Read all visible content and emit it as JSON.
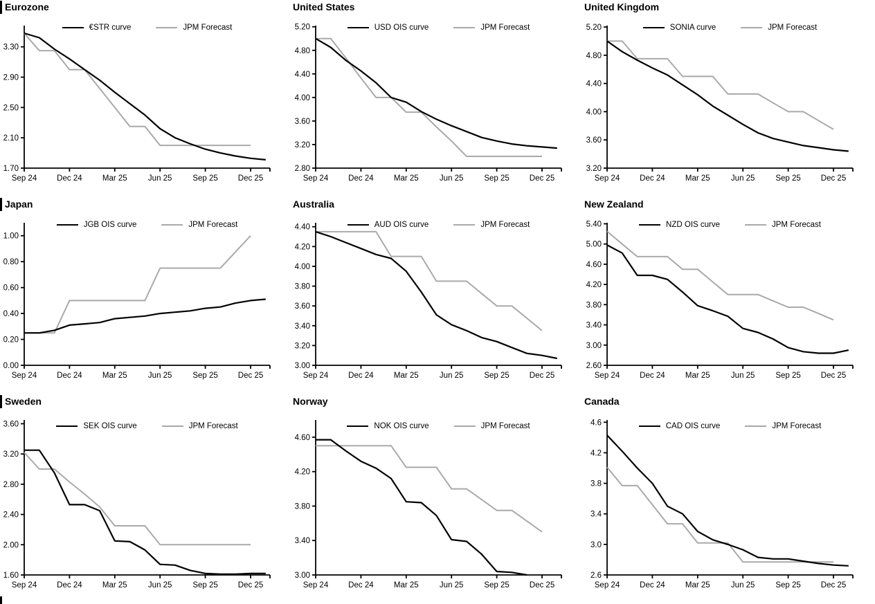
{
  "page": {
    "background": "#ffffff",
    "axis_color": "#000000",
    "curve_color": "#000000",
    "forecast_color": "#a9a9a9",
    "grid": "3x3",
    "partial_section_bar_bottom_left": true
  },
  "x_axis": {
    "tick_labels": [
      "Sep 24",
      "Dec 24",
      "Mar 25",
      "Jun 25",
      "Sep 25",
      "Dec 25"
    ],
    "months_between_ticks": 3
  },
  "chart_data": [
    {
      "type": "line",
      "title": "Eurozone",
      "left_bar": true,
      "ylim": [
        1.7,
        3.58
      ],
      "y_tick_labels": [
        "1.70",
        "2.10",
        "2.50",
        "2.90",
        "3.30"
      ],
      "x_tick_labels": [
        "Sep 24",
        "Dec 24",
        "Mar 25",
        "Jun 25",
        "Sep 25",
        "Dec 25"
      ],
      "legend_position": "top-center",
      "series": [
        {
          "name": "€STR curve",
          "color": "#000000",
          "values": [
            3.48,
            3.42,
            3.27,
            3.14,
            3.0,
            2.86,
            2.7,
            2.55,
            2.4,
            2.22,
            2.1,
            2.02,
            1.95,
            1.9,
            1.86,
            1.83,
            1.81
          ]
        },
        {
          "name": "JPM Forecast",
          "color": "#a9a9a9",
          "values": [
            3.48,
            3.25,
            3.25,
            3.0,
            3.0,
            2.75,
            2.5,
            2.25,
            2.25,
            2.0,
            2.0,
            2.0,
            2.0,
            2.0,
            2.0,
            2.0
          ]
        }
      ]
    },
    {
      "type": "line",
      "title": "United States",
      "left_bar": false,
      "ylim": [
        2.8,
        5.22
      ],
      "y_tick_labels": [
        "2.80",
        "3.20",
        "3.60",
        "4.00",
        "4.40",
        "4.80",
        "5.20"
      ],
      "x_tick_labels": [
        "Sep 24",
        "Dec 24",
        "Mar 25",
        "Jun 25",
        "Sep 25",
        "Dec 25"
      ],
      "legend_position": "top-center",
      "series": [
        {
          "name": "USD OIS curve",
          "color": "#000000",
          "values": [
            5.0,
            4.85,
            4.63,
            4.45,
            4.25,
            4.0,
            3.92,
            3.76,
            3.63,
            3.52,
            3.42,
            3.32,
            3.26,
            3.21,
            3.18,
            3.16,
            3.14
          ]
        },
        {
          "name": "JPM Forecast",
          "color": "#a9a9a9",
          "values": [
            5.0,
            5.0,
            4.67,
            4.33,
            4.0,
            4.0,
            3.75,
            3.75,
            3.5,
            3.26,
            3.0,
            3.0,
            3.0,
            3.0,
            3.0,
            3.0
          ]
        }
      ]
    },
    {
      "type": "line",
      "title": "United Kingdom",
      "left_bar": false,
      "ylim": [
        3.2,
        5.22
      ],
      "y_tick_labels": [
        "3.20",
        "3.60",
        "4.00",
        "4.40",
        "4.80",
        "5.20"
      ],
      "x_tick_labels": [
        "Sep 24",
        "Dec 24",
        "Mar 25",
        "Jun 25",
        "Sep 25",
        "Dec 25"
      ],
      "legend_position": "top-center",
      "series": [
        {
          "name": "SONIA curve",
          "color": "#000000",
          "values": [
            5.0,
            4.85,
            4.73,
            4.62,
            4.52,
            4.38,
            4.24,
            4.08,
            3.95,
            3.82,
            3.7,
            3.62,
            3.57,
            3.52,
            3.49,
            3.46,
            3.44
          ]
        },
        {
          "name": "JPM Forecast",
          "color": "#a9a9a9",
          "values": [
            5.0,
            5.0,
            4.75,
            4.75,
            4.75,
            4.5,
            4.5,
            4.5,
            4.25,
            4.25,
            4.25,
            4.125,
            4.0,
            4.0,
            3.875,
            3.75
          ]
        }
      ]
    },
    {
      "type": "line",
      "title": "Japan",
      "left_bar": true,
      "ylim": [
        0.0,
        1.1
      ],
      "y_tick_labels": [
        "0.00",
        "0.20",
        "0.40",
        "0.60",
        "0.80",
        "1.00"
      ],
      "x_tick_labels": [
        "Sep 24",
        "Dec 24",
        "Mar 25",
        "Jun 25",
        "Sep 25",
        "Dec 25"
      ],
      "legend_position": "top-center",
      "series": [
        {
          "name": "JGB OIS curve",
          "color": "#000000",
          "values": [
            0.25,
            0.25,
            0.27,
            0.31,
            0.32,
            0.33,
            0.36,
            0.37,
            0.38,
            0.4,
            0.41,
            0.42,
            0.44,
            0.45,
            0.48,
            0.5,
            0.51
          ]
        },
        {
          "name": "JPM Forecast",
          "color": "#a9a9a9",
          "values": [
            0.25,
            0.25,
            0.25,
            0.5,
            0.5,
            0.5,
            0.5,
            0.5,
            0.5,
            0.75,
            0.75,
            0.75,
            0.75,
            0.75,
            0.875,
            1.0
          ]
        }
      ]
    },
    {
      "type": "line",
      "title": "Australia",
      "left_bar": false,
      "ylim": [
        3.0,
        4.44
      ],
      "y_tick_labels": [
        "3.00",
        "3.20",
        "3.40",
        "3.60",
        "3.80",
        "4.00",
        "4.20",
        "4.40"
      ],
      "x_tick_labels": [
        "Sep 24",
        "Dec 24",
        "Mar 25",
        "Jun 25",
        "Sep 25",
        "Dec 25"
      ],
      "legend_position": "top-center",
      "series": [
        {
          "name": "AUD OIS curve",
          "color": "#000000",
          "values": [
            4.35,
            4.3,
            4.24,
            4.18,
            4.12,
            4.08,
            3.95,
            3.74,
            3.51,
            3.41,
            3.35,
            3.28,
            3.24,
            3.18,
            3.12,
            3.1,
            3.07
          ]
        },
        {
          "name": "JPM Forecast",
          "color": "#a9a9a9",
          "values": [
            4.35,
            4.35,
            4.35,
            4.35,
            4.35,
            4.1,
            4.1,
            4.1,
            3.85,
            3.85,
            3.85,
            3.725,
            3.6,
            3.6,
            3.475,
            3.35
          ]
        }
      ]
    },
    {
      "type": "line",
      "title": "New Zealand",
      "left_bar": false,
      "ylim": [
        2.6,
        5.42
      ],
      "y_tick_labels": [
        "2.60",
        "3.00",
        "3.40",
        "3.80",
        "4.20",
        "4.60",
        "5.00",
        "5.40"
      ],
      "x_tick_labels": [
        "Sep 24",
        "Dec 24",
        "Mar 25",
        "Jun 25",
        "Sep 25",
        "Dec 25"
      ],
      "legend_position": "top-center",
      "series": [
        {
          "name": "NZD OIS curve",
          "color": "#000000",
          "values": [
            4.98,
            4.82,
            4.38,
            4.38,
            4.3,
            4.05,
            3.78,
            3.68,
            3.57,
            3.33,
            3.25,
            3.12,
            2.95,
            2.87,
            2.84,
            2.84,
            2.9
          ]
        },
        {
          "name": "JPM Forecast",
          "color": "#a9a9a9",
          "values": [
            5.25,
            5.0,
            4.75,
            4.75,
            4.75,
            4.5,
            4.5,
            4.25,
            4.0,
            4.0,
            4.0,
            3.875,
            3.75,
            3.75,
            3.625,
            3.5
          ]
        }
      ]
    },
    {
      "type": "line",
      "title": "Sweden",
      "left_bar": true,
      "ylim": [
        1.6,
        3.65
      ],
      "y_tick_labels": [
        "1.60",
        "2.00",
        "2.40",
        "2.80",
        "3.20",
        "3.60"
      ],
      "x_tick_labels": [
        "Sep 24",
        "Dec 24",
        "Mar 25",
        "Jun 25",
        "Sep 25",
        "Dec 25"
      ],
      "legend_position": "top-center",
      "series": [
        {
          "name": "SEK OIS curve",
          "color": "#000000",
          "values": [
            3.25,
            3.25,
            2.95,
            2.53,
            2.53,
            2.45,
            2.05,
            2.04,
            1.93,
            1.74,
            1.73,
            1.66,
            1.62,
            1.61,
            1.61,
            1.62,
            1.62
          ]
        },
        {
          "name": "JPM Forecast",
          "color": "#a9a9a9",
          "values": [
            3.22,
            3.0,
            3.0,
            2.83,
            2.67,
            2.5,
            2.25,
            2.25,
            2.25,
            2.0,
            2.0,
            2.0,
            2.0,
            2.0,
            2.0,
            2.0
          ]
        }
      ]
    },
    {
      "type": "line",
      "title": "Norway",
      "left_bar": false,
      "ylim": [
        3.0,
        4.8
      ],
      "y_tick_labels": [
        "3.00",
        "3.40",
        "3.80",
        "4.20",
        "4.60"
      ],
      "x_tick_labels": [
        "Sep 24",
        "Dec 24",
        "Mar 25",
        "Jun 25",
        "Sep 25",
        "Dec 25"
      ],
      "legend_position": "top-center",
      "series": [
        {
          "name": "NOK OIS curve",
          "color": "#000000",
          "values": [
            4.57,
            4.57,
            4.44,
            4.32,
            4.24,
            4.12,
            3.85,
            3.84,
            3.69,
            3.41,
            3.39,
            3.24,
            3.04,
            3.03,
            3.0
          ]
        },
        {
          "name": "JPM Forecast",
          "color": "#a9a9a9",
          "values": [
            4.5,
            4.5,
            4.5,
            4.5,
            4.5,
            4.5,
            4.25,
            4.25,
            4.25,
            4.0,
            4.0,
            3.875,
            3.75,
            3.75,
            3.625,
            3.5
          ]
        }
      ]
    },
    {
      "type": "line",
      "title": "Canada",
      "left_bar": false,
      "ylim": [
        2.6,
        4.63
      ],
      "y_tick_labels": [
        "2.6",
        "3.0",
        "3.4",
        "3.8",
        "4.2",
        "4.6"
      ],
      "x_tick_labels": [
        "Sep 24",
        "Dec 24",
        "Mar 25",
        "Jun 25",
        "Sep 25",
        "Dec 25"
      ],
      "legend_position": "top-center",
      "series": [
        {
          "name": "CAD OIS curve",
          "color": "#000000",
          "values": [
            4.43,
            4.22,
            4.0,
            3.8,
            3.5,
            3.4,
            3.17,
            3.06,
            3.0,
            2.93,
            2.83,
            2.81,
            2.81,
            2.78,
            2.75,
            2.73,
            2.72
          ]
        },
        {
          "name": "JPM Forecast",
          "color": "#a9a9a9",
          "values": [
            4.01,
            3.77,
            3.77,
            3.52,
            3.27,
            3.27,
            3.02,
            3.02,
            3.02,
            2.77,
            2.77,
            2.77,
            2.77,
            2.77,
            2.77,
            2.77
          ]
        }
      ]
    }
  ]
}
